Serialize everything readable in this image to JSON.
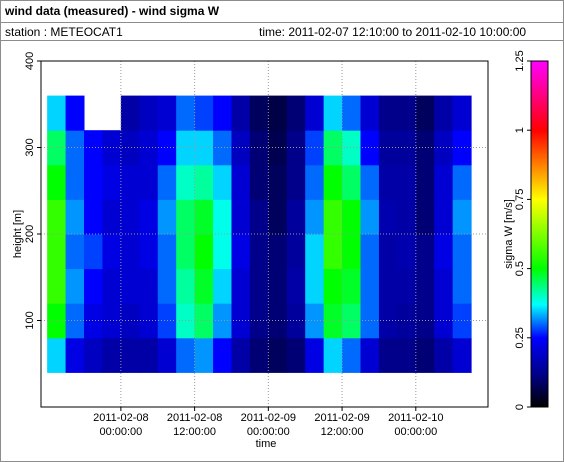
{
  "chart_data": {
    "type": "heatmap",
    "title": "wind data (measured) - wind sigma W",
    "station": "station : METEOCAT1",
    "time_range": "time: 2011-02-07 12:10:00 to 2011-02-10 10:00:00",
    "x_label": "time",
    "y_label": "height [m]",
    "xlim": [
      "2011-02-07 11:00:00",
      "2011-02-10 11:45:00"
    ],
    "xticks": [
      {
        "value": "2011-02-08 00:00:00",
        "label": "2011-02-08\n00:00:00"
      },
      {
        "value": "2011-02-08 12:00:00",
        "label": "2011-02-08\n12:00:00"
      },
      {
        "value": "2011-02-09 00:00:00",
        "label": "2011-02-09\n00:00:00"
      },
      {
        "value": "2011-02-09 12:00:00",
        "label": "2011-02-09\n12:00:00"
      },
      {
        "value": "2011-02-10 00:00:00",
        "label": "2011-02-10\n00:00:00"
      }
    ],
    "ylim": [
      0,
      400
    ],
    "yticks": [
      100,
      200,
      300,
      400
    ],
    "grid": true,
    "x": [
      "2011-02-07 13:30:00",
      "2011-02-07 16:30:00",
      "2011-02-07 19:30:00",
      "2011-02-07 22:30:00",
      "2011-02-08 01:30:00",
      "2011-02-08 04:30:00",
      "2011-02-08 07:30:00",
      "2011-02-08 10:30:00",
      "2011-02-08 13:30:00",
      "2011-02-08 16:30:00",
      "2011-02-08 19:30:00",
      "2011-02-08 22:30:00",
      "2011-02-09 01:30:00",
      "2011-02-09 04:30:00",
      "2011-02-09 07:30:00",
      "2011-02-09 10:30:00",
      "2011-02-09 13:30:00",
      "2011-02-09 16:30:00",
      "2011-02-09 19:30:00",
      "2011-02-09 22:30:00",
      "2011-02-10 01:30:00",
      "2011-02-10 04:30:00",
      "2011-02-10 07:30:00"
    ],
    "y": [
      60,
      100,
      140,
      180,
      220,
      260,
      300,
      340
    ],
    "z": [
      [
        0.35,
        0.22,
        0.18,
        0.15,
        0.15,
        0.15,
        0.2,
        0.3,
        0.32,
        0.25,
        0.15,
        0.1,
        0.08,
        0.1,
        0.22,
        0.35,
        0.3,
        0.2,
        0.12,
        0.12,
        0.1,
        0.15,
        0.2
      ],
      [
        0.5,
        0.3,
        0.22,
        0.2,
        0.18,
        0.2,
        0.28,
        0.4,
        0.45,
        0.32,
        0.2,
        0.12,
        0.1,
        0.14,
        0.32,
        0.48,
        0.45,
        0.3,
        0.15,
        0.14,
        0.12,
        0.2,
        0.28
      ],
      [
        0.55,
        0.32,
        0.25,
        0.2,
        0.2,
        0.2,
        0.3,
        0.42,
        0.48,
        0.35,
        0.2,
        0.12,
        0.1,
        0.15,
        0.35,
        0.5,
        0.48,
        0.3,
        0.15,
        0.15,
        0.12,
        0.2,
        0.3
      ],
      [
        0.55,
        0.3,
        0.28,
        0.22,
        0.2,
        0.22,
        0.3,
        0.45,
        0.5,
        0.38,
        0.22,
        0.12,
        0.1,
        0.14,
        0.35,
        0.55,
        0.5,
        0.3,
        0.15,
        0.16,
        0.12,
        0.22,
        0.3
      ],
      [
        0.55,
        0.32,
        0.25,
        0.2,
        0.2,
        0.22,
        0.32,
        0.45,
        0.48,
        0.38,
        0.2,
        0.12,
        0.08,
        0.14,
        0.32,
        0.55,
        0.5,
        0.32,
        0.16,
        0.15,
        0.1,
        0.2,
        0.32
      ],
      [
        0.5,
        0.3,
        0.25,
        0.22,
        0.2,
        0.2,
        0.3,
        0.4,
        0.42,
        0.35,
        0.2,
        0.1,
        0.08,
        0.12,
        0.3,
        0.5,
        0.45,
        0.3,
        0.15,
        0.15,
        0.1,
        0.2,
        0.3
      ],
      [
        0.45,
        0.3,
        0.25,
        0.2,
        0.18,
        0.2,
        0.25,
        0.35,
        0.35,
        0.3,
        0.18,
        0.1,
        0.07,
        0.12,
        0.28,
        0.45,
        0.4,
        0.25,
        0.14,
        0.14,
        0.1,
        0.18,
        0.25
      ],
      [
        0.35,
        0.25,
        null,
        null,
        0.15,
        0.18,
        0.2,
        0.3,
        0.28,
        0.25,
        0.15,
        0.08,
        0.06,
        0.1,
        0.2,
        0.35,
        0.3,
        0.2,
        0.12,
        0.12,
        0.08,
        0.15,
        0.2
      ]
    ],
    "colorbar": {
      "label": "sigma W [m/s]",
      "lim": [
        0,
        1.25
      ],
      "ticks": [
        0,
        0.25,
        0.5,
        0.75,
        1,
        1.25
      ],
      "colorscale": [
        [
          0,
          "#000000"
        ],
        [
          0.12,
          "#00008b"
        ],
        [
          0.25,
          "#0000ff"
        ],
        [
          0.37,
          "#00ffff"
        ],
        [
          0.5,
          "#00ff00"
        ],
        [
          0.75,
          "#ffff00"
        ],
        [
          1,
          "#ff0000"
        ],
        [
          1.25,
          "#ff00ff"
        ]
      ]
    }
  }
}
